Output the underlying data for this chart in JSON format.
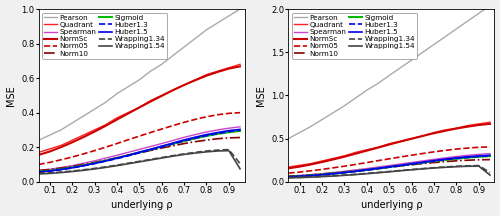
{
  "rho": [
    0.05,
    0.1,
    0.15,
    0.2,
    0.25,
    0.3,
    0.35,
    0.4,
    0.45,
    0.5,
    0.55,
    0.6,
    0.65,
    0.7,
    0.75,
    0.8,
    0.85,
    0.9,
    0.95
  ],
  "left_ylim": [
    0,
    1.0
  ],
  "right_ylim": [
    0,
    2.0
  ],
  "xlabel": "underlying ρ",
  "ylabel": "MSE",
  "left_yticks": [
    0.0,
    0.2,
    0.4,
    0.6,
    0.8,
    1.0
  ],
  "right_yticks": [
    0.0,
    0.5,
    1.0,
    1.5,
    2.0
  ],
  "xticks": [
    0.1,
    0.2,
    0.3,
    0.4,
    0.5,
    0.6,
    0.7,
    0.8,
    0.9
  ],
  "curves": [
    {
      "name": "Pearson",
      "color": "#aaaaaa",
      "linestyle": "solid",
      "linewidth": 1.0,
      "left_y": [
        0.24,
        0.27,
        0.3,
        0.34,
        0.38,
        0.42,
        0.46,
        0.51,
        0.55,
        0.59,
        0.64,
        0.68,
        0.73,
        0.78,
        0.83,
        0.88,
        0.92,
        0.96,
        1.0
      ],
      "right_y": [
        0.5,
        0.57,
        0.64,
        0.72,
        0.8,
        0.88,
        0.97,
        1.06,
        1.14,
        1.23,
        1.32,
        1.41,
        1.5,
        1.59,
        1.68,
        1.77,
        1.86,
        1.95,
        2.04
      ]
    },
    {
      "name": "Quadrant",
      "color": "#ff2222",
      "linestyle": "solid",
      "linewidth": 1.0,
      "left_y": [
        0.17,
        0.19,
        0.21,
        0.24,
        0.27,
        0.3,
        0.33,
        0.37,
        0.4,
        0.43,
        0.47,
        0.5,
        0.53,
        0.56,
        0.59,
        0.62,
        0.64,
        0.66,
        0.68
      ],
      "right_y": [
        0.17,
        0.19,
        0.21,
        0.24,
        0.27,
        0.3,
        0.34,
        0.37,
        0.4,
        0.44,
        0.47,
        0.5,
        0.53,
        0.57,
        0.6,
        0.62,
        0.65,
        0.67,
        0.69
      ]
    },
    {
      "name": "Spearman",
      "color": "#cc44cc",
      "linestyle": "solid",
      "linewidth": 1.0,
      "left_y": [
        0.065,
        0.072,
        0.082,
        0.093,
        0.107,
        0.121,
        0.137,
        0.153,
        0.17,
        0.187,
        0.204,
        0.221,
        0.239,
        0.257,
        0.273,
        0.288,
        0.3,
        0.31,
        0.318
      ],
      "right_y": [
        0.065,
        0.072,
        0.082,
        0.093,
        0.107,
        0.121,
        0.137,
        0.153,
        0.17,
        0.188,
        0.205,
        0.223,
        0.241,
        0.259,
        0.276,
        0.292,
        0.306,
        0.317,
        0.326
      ]
    },
    {
      "name": "NormSc",
      "color": "#cc0000",
      "linestyle": "solid",
      "linewidth": 1.5,
      "left_y": [
        0.155,
        0.175,
        0.2,
        0.228,
        0.258,
        0.29,
        0.324,
        0.36,
        0.395,
        0.43,
        0.464,
        0.497,
        0.53,
        0.56,
        0.588,
        0.614,
        0.636,
        0.655,
        0.668
      ],
      "right_y": [
        0.155,
        0.175,
        0.2,
        0.228,
        0.258,
        0.29,
        0.325,
        0.36,
        0.395,
        0.431,
        0.465,
        0.498,
        0.531,
        0.562,
        0.59,
        0.616,
        0.638,
        0.657,
        0.67
      ]
    },
    {
      "name": "Norm05",
      "color": "#cc0000",
      "linestyle": "dashed",
      "linewidth": 1.2,
      "left_y": [
        0.1,
        0.112,
        0.127,
        0.143,
        0.161,
        0.18,
        0.2,
        0.221,
        0.243,
        0.264,
        0.285,
        0.305,
        0.325,
        0.344,
        0.361,
        0.376,
        0.388,
        0.396,
        0.4
      ],
      "right_y": [
        0.1,
        0.112,
        0.127,
        0.143,
        0.161,
        0.18,
        0.2,
        0.222,
        0.244,
        0.265,
        0.287,
        0.307,
        0.327,
        0.346,
        0.363,
        0.378,
        0.39,
        0.399,
        0.403
      ]
    },
    {
      "name": "Norm10",
      "color": "#880000",
      "linestyle": "dashdot",
      "linewidth": 1.2,
      "left_y": [
        0.065,
        0.071,
        0.079,
        0.089,
        0.1,
        0.112,
        0.125,
        0.139,
        0.153,
        0.167,
        0.181,
        0.195,
        0.208,
        0.221,
        0.232,
        0.241,
        0.249,
        0.254,
        0.256
      ],
      "right_y": [
        0.065,
        0.071,
        0.079,
        0.089,
        0.1,
        0.112,
        0.125,
        0.139,
        0.153,
        0.168,
        0.182,
        0.196,
        0.21,
        0.222,
        0.233,
        0.242,
        0.249,
        0.254,
        0.256
      ]
    },
    {
      "name": "Sigmoid",
      "color": "#00bb00",
      "linestyle": "solid",
      "linewidth": 1.5,
      "left_y": [
        0.058,
        0.064,
        0.073,
        0.083,
        0.095,
        0.108,
        0.122,
        0.137,
        0.153,
        0.17,
        0.186,
        0.203,
        0.219,
        0.236,
        0.251,
        0.265,
        0.277,
        0.287,
        0.294
      ],
      "right_y": [
        0.058,
        0.064,
        0.073,
        0.083,
        0.095,
        0.108,
        0.122,
        0.137,
        0.153,
        0.17,
        0.187,
        0.204,
        0.221,
        0.238,
        0.253,
        0.267,
        0.279,
        0.289,
        0.296
      ]
    },
    {
      "name": "Huber1.3",
      "color": "#0000ee",
      "linestyle": "dashed",
      "linewidth": 1.2,
      "left_y": [
        0.056,
        0.062,
        0.07,
        0.08,
        0.092,
        0.105,
        0.119,
        0.134,
        0.15,
        0.167,
        0.184,
        0.201,
        0.219,
        0.236,
        0.252,
        0.267,
        0.279,
        0.29,
        0.298
      ],
      "right_y": [
        0.056,
        0.062,
        0.07,
        0.08,
        0.092,
        0.105,
        0.119,
        0.134,
        0.151,
        0.168,
        0.185,
        0.203,
        0.221,
        0.238,
        0.255,
        0.269,
        0.282,
        0.292,
        0.3
      ]
    },
    {
      "name": "Huber1.5",
      "color": "#0000ee",
      "linestyle": "solid",
      "linewidth": 1.2,
      "left_y": [
        0.056,
        0.062,
        0.071,
        0.081,
        0.093,
        0.106,
        0.121,
        0.137,
        0.153,
        0.171,
        0.188,
        0.206,
        0.224,
        0.242,
        0.258,
        0.273,
        0.285,
        0.296,
        0.303
      ],
      "right_y": [
        0.056,
        0.062,
        0.071,
        0.081,
        0.093,
        0.107,
        0.122,
        0.138,
        0.155,
        0.173,
        0.19,
        0.209,
        0.227,
        0.245,
        0.262,
        0.277,
        0.289,
        0.299,
        0.307
      ]
    },
    {
      "name": "Wrapping1.34",
      "color": "#444444",
      "linestyle": "dashed",
      "linewidth": 1.2,
      "left_y": [
        0.048,
        0.051,
        0.056,
        0.062,
        0.069,
        0.077,
        0.086,
        0.096,
        0.107,
        0.118,
        0.129,
        0.14,
        0.151,
        0.161,
        0.17,
        0.178,
        0.183,
        0.186,
        0.105
      ],
      "right_y": [
        0.048,
        0.051,
        0.056,
        0.062,
        0.069,
        0.077,
        0.086,
        0.096,
        0.107,
        0.118,
        0.13,
        0.141,
        0.152,
        0.162,
        0.171,
        0.179,
        0.184,
        0.187,
        0.107
      ]
    },
    {
      "name": "Wrapping1.54",
      "color": "#444444",
      "linestyle": "solid",
      "linewidth": 1.2,
      "left_y": [
        0.045,
        0.048,
        0.053,
        0.059,
        0.066,
        0.074,
        0.083,
        0.093,
        0.104,
        0.115,
        0.126,
        0.137,
        0.148,
        0.158,
        0.166,
        0.173,
        0.178,
        0.18,
        0.075
      ],
      "right_y": [
        0.045,
        0.048,
        0.053,
        0.059,
        0.066,
        0.074,
        0.083,
        0.093,
        0.104,
        0.115,
        0.127,
        0.138,
        0.149,
        0.159,
        0.167,
        0.174,
        0.179,
        0.181,
        0.077
      ]
    }
  ],
  "legend_fontsize": 5.2,
  "axis_fontsize": 7,
  "tick_fontsize": 6,
  "bg_color": "#f0f0f0",
  "plot_bg_color": "#ffffff"
}
